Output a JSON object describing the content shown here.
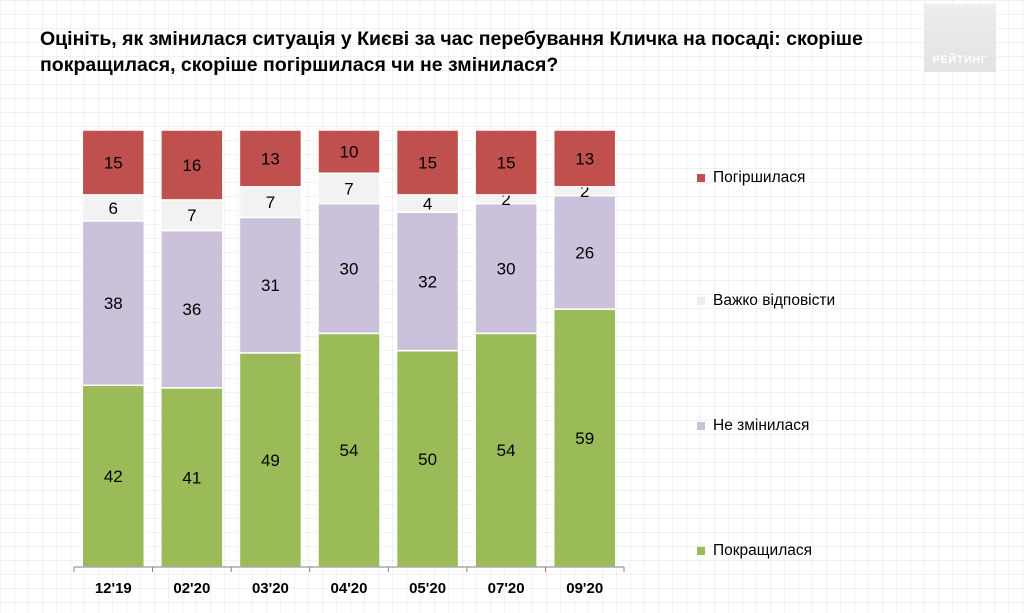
{
  "title": "Оцініть, як змінилася ситуація у Києві за час перебування Кличка на посаді: скоріше покращилася, скоріше погіршилася чи не змінилася?",
  "logo_text": "РЕЙТИНГ",
  "colors": {
    "worse": "#c0504d",
    "hard_to_say": "#f2f2f2",
    "unchanged": "#ccc1da",
    "improved": "#9bbb59"
  },
  "chart_data": {
    "type": "bar",
    "stacked": true,
    "normalized": true,
    "categories": [
      "12'19",
      "02'20",
      "03'20",
      "04'20",
      "05'20",
      "07'20",
      "09'20"
    ],
    "series": [
      {
        "name": "Покращилася",
        "key": "improved",
        "values": [
          42,
          41,
          49,
          54,
          50,
          54,
          59
        ]
      },
      {
        "name": "Не змінилася",
        "key": "unchanged",
        "values": [
          38,
          36,
          31,
          30,
          32,
          30,
          26
        ]
      },
      {
        "name": "Важко відповісти",
        "key": "hard_to_say",
        "values": [
          6,
          7,
          7,
          7,
          4,
          2,
          2
        ]
      },
      {
        "name": "Погіршилася",
        "key": "worse",
        "values": [
          15,
          16,
          13,
          10,
          15,
          15,
          13
        ]
      }
    ],
    "legend_order": [
      "worse",
      "hard_to_say",
      "unchanged",
      "improved"
    ],
    "legend_position": "right",
    "grid": false,
    "ylim": [
      0,
      100
    ]
  }
}
